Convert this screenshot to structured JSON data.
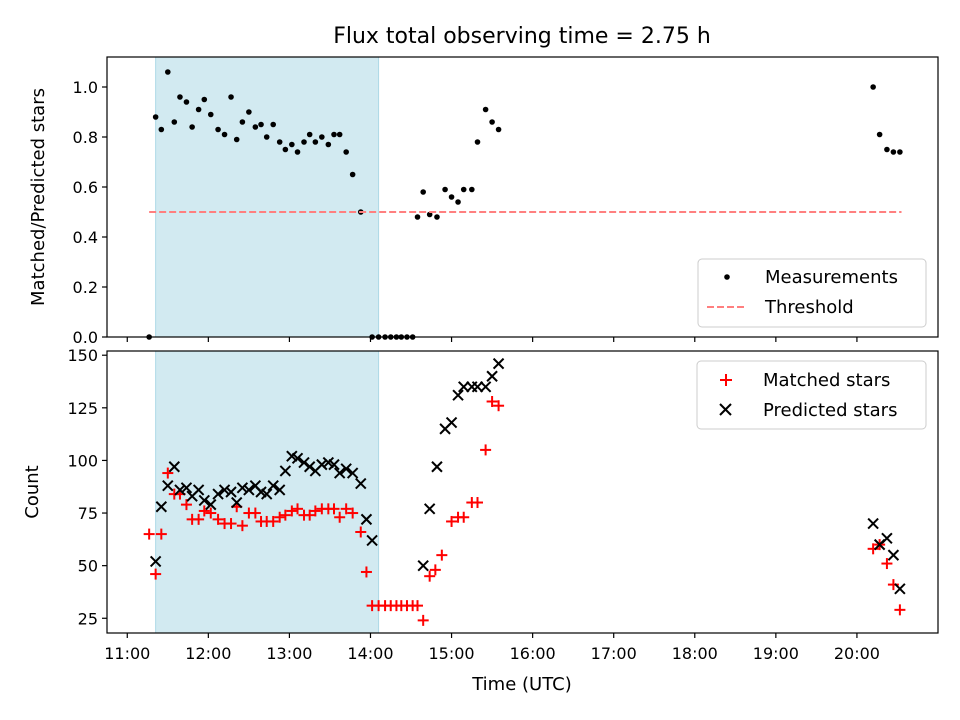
{
  "figure": {
    "title": "Flux total observing time = 2.75 h"
  },
  "chart_data": [
    {
      "type": "scatter",
      "ylabel": "Matched/Predicted stars",
      "xlim": [
        10.75,
        21.0
      ],
      "ylim": [
        0,
        1.12
      ],
      "yticks": [
        0.0,
        0.2,
        0.4,
        0.6,
        0.8,
        1.0
      ],
      "ytick_labels": [
        "0.0",
        "0.2",
        "0.4",
        "0.6",
        "0.8",
        "1.0"
      ],
      "grid": false,
      "legend": "bottom-right",
      "shaded_span": {
        "x": [
          11.35,
          14.1
        ],
        "color": "#add8e6"
      },
      "series": [
        {
          "name": "Measurements",
          "marker": "dot",
          "color": "#000000",
          "x": [
            11.27,
            11.35,
            11.42,
            11.5,
            11.58,
            11.65,
            11.73,
            11.8,
            11.88,
            11.95,
            12.03,
            12.12,
            12.2,
            12.28,
            12.35,
            12.42,
            12.5,
            12.58,
            12.65,
            12.72,
            12.8,
            12.88,
            12.95,
            13.03,
            13.1,
            13.18,
            13.25,
            13.32,
            13.4,
            13.48,
            13.55,
            13.62,
            13.7,
            13.78,
            13.88,
            14.02,
            14.1,
            14.18,
            14.25,
            14.32,
            14.38,
            14.45,
            14.52,
            14.58,
            14.65,
            14.73,
            14.82,
            14.92,
            15.0,
            15.08,
            15.15,
            15.25,
            15.32,
            15.42,
            15.5,
            15.58,
            20.2,
            20.28,
            20.37,
            20.45,
            20.53
          ],
          "y": [
            0.0,
            0.88,
            0.83,
            1.06,
            0.86,
            0.96,
            0.94,
            0.84,
            0.91,
            0.95,
            0.89,
            0.83,
            0.81,
            0.96,
            0.79,
            0.86,
            0.9,
            0.84,
            0.85,
            0.8,
            0.85,
            0.78,
            0.75,
            0.77,
            0.74,
            0.78,
            0.81,
            0.78,
            0.8,
            0.77,
            0.81,
            0.81,
            0.74,
            0.65,
            0.5,
            0.0,
            0.0,
            0.0,
            0.0,
            0.0,
            0.0,
            0.0,
            0.0,
            0.48,
            0.58,
            0.49,
            0.48,
            0.59,
            0.56,
            0.54,
            0.59,
            0.59,
            0.78,
            0.91,
            0.86,
            0.83,
            1.0,
            0.81,
            0.75,
            0.74,
            0.74
          ]
        },
        {
          "name": "Threshold",
          "style": "dashed",
          "color": "#ff7f7f",
          "x": [
            11.27,
            20.55
          ],
          "y": [
            0.5,
            0.5
          ]
        }
      ]
    },
    {
      "type": "scatter",
      "xlabel": "Time (UTC)",
      "ylabel": "Count",
      "xlim": [
        10.75,
        21.0
      ],
      "ylim": [
        18,
        152
      ],
      "xticks": [
        11,
        12,
        13,
        14,
        15,
        16,
        17,
        18,
        19,
        20
      ],
      "xtick_labels": [
        "11:00",
        "12:00",
        "13:00",
        "14:00",
        "15:00",
        "16:00",
        "17:00",
        "18:00",
        "19:00",
        "20:00"
      ],
      "yticks": [
        25,
        50,
        75,
        100,
        125,
        150
      ],
      "ytick_labels": [
        "25",
        "50",
        "75",
        "100",
        "125",
        "150"
      ],
      "grid": false,
      "legend": "top-right",
      "shaded_span": {
        "x": [
          11.35,
          14.1
        ],
        "color": "#add8e6"
      },
      "series": [
        {
          "name": "Matched stars",
          "marker": "plus",
          "color": "#ff0000",
          "x": [
            11.27,
            11.35,
            11.42,
            11.5,
            11.58,
            11.65,
            11.73,
            11.8,
            11.88,
            11.95,
            12.03,
            12.12,
            12.2,
            12.28,
            12.35,
            12.42,
            12.5,
            12.58,
            12.65,
            12.72,
            12.8,
            12.88,
            12.95,
            13.03,
            13.1,
            13.18,
            13.25,
            13.32,
            13.4,
            13.48,
            13.55,
            13.62,
            13.7,
            13.78,
            13.88,
            13.95,
            14.02,
            14.1,
            14.18,
            14.25,
            14.32,
            14.38,
            14.45,
            14.52,
            14.58,
            14.65,
            14.73,
            14.8,
            14.88,
            15.0,
            15.08,
            15.15,
            15.25,
            15.32,
            15.42,
            15.5,
            15.58,
            20.2,
            20.28,
            20.37,
            20.45,
            20.53
          ],
          "y": [
            65,
            46,
            65,
            94,
            84,
            84,
            79,
            72,
            72,
            76,
            75,
            72,
            70,
            70,
            78,
            69,
            75,
            75,
            71,
            71,
            71,
            73,
            74,
            76,
            77,
            74,
            74,
            76,
            77,
            77,
            77,
            73,
            77,
            75,
            66,
            47,
            31,
            31,
            31,
            31,
            31,
            31,
            31,
            31,
            31,
            24,
            45,
            48,
            55,
            71,
            73,
            73,
            80,
            80,
            105,
            128,
            126,
            58,
            60,
            51,
            41,
            29
          ]
        },
        {
          "name": "Predicted stars",
          "marker": "x",
          "color": "#000000",
          "x": [
            11.35,
            11.42,
            11.5,
            11.58,
            11.65,
            11.73,
            11.8,
            11.88,
            11.95,
            12.03,
            12.12,
            12.2,
            12.28,
            12.35,
            12.42,
            12.5,
            12.58,
            12.65,
            12.72,
            12.8,
            12.88,
            12.95,
            13.03,
            13.1,
            13.18,
            13.25,
            13.32,
            13.4,
            13.48,
            13.55,
            13.62,
            13.7,
            13.78,
            13.88,
            13.95,
            14.02,
            14.65,
            14.73,
            14.82,
            14.92,
            15.0,
            15.08,
            15.15,
            15.25,
            15.32,
            15.42,
            15.5,
            15.58,
            20.2,
            20.28,
            20.37,
            20.45,
            20.53
          ],
          "y": [
            52,
            78,
            88,
            97,
            86,
            87,
            83,
            86,
            81,
            79,
            84,
            86,
            85,
            80,
            87,
            86,
            88,
            85,
            84,
            88,
            86,
            95,
            102,
            101,
            99,
            97,
            95,
            98,
            99,
            98,
            94,
            96,
            94,
            89,
            72,
            62,
            50,
            77,
            97,
            115,
            118,
            131,
            135,
            135,
            135,
            135,
            140,
            146,
            70,
            60,
            63,
            55,
            39
          ]
        }
      ]
    }
  ]
}
